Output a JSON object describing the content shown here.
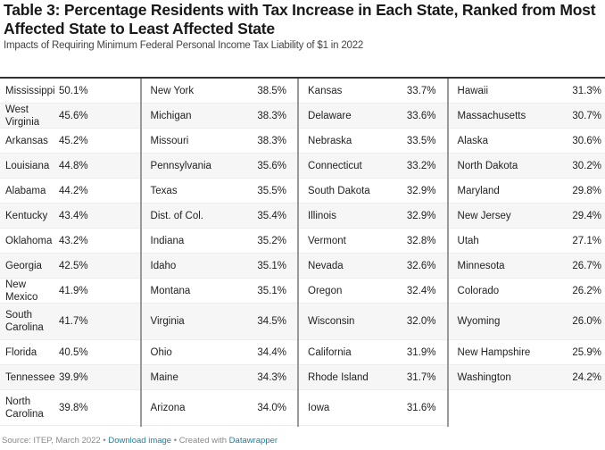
{
  "header": {
    "title": "Table 3: Percentage Residents with Tax Increase in Each State, Ranked from Most Affected State to Least Affected State",
    "subtitle": "Impacts of Requiring Minimum Federal Personal Income Tax Liability of $1 in 2022"
  },
  "table": {
    "columns": [
      [
        {
          "state": "Mississippi",
          "value": "50.1%"
        },
        {
          "state": "West Virginia",
          "value": "45.6%"
        },
        {
          "state": "Arkansas",
          "value": "45.2%"
        },
        {
          "state": "Louisiana",
          "value": "44.8%"
        },
        {
          "state": "Alabama",
          "value": "44.2%"
        },
        {
          "state": "Kentucky",
          "value": "43.4%"
        },
        {
          "state": "Oklahoma",
          "value": "43.2%"
        },
        {
          "state": "Georgia",
          "value": "42.5%"
        },
        {
          "state": "New Mexico",
          "value": "41.9%"
        },
        {
          "state": "South Carolina",
          "value": "41.7%"
        },
        {
          "state": "Florida",
          "value": "40.5%"
        },
        {
          "state": "Tennessee",
          "value": "39.9%"
        },
        {
          "state": "North Carolina",
          "value": "39.8%"
        }
      ],
      [
        {
          "state": "New York",
          "value": "38.5%"
        },
        {
          "state": "Michigan",
          "value": "38.3%"
        },
        {
          "state": "Missouri",
          "value": "38.3%"
        },
        {
          "state": "Pennsylvania",
          "value": "35.6%"
        },
        {
          "state": "Texas",
          "value": "35.5%"
        },
        {
          "state": "Dist. of Col.",
          "value": "35.4%"
        },
        {
          "state": "Indiana",
          "value": "35.2%"
        },
        {
          "state": "Idaho",
          "value": "35.1%"
        },
        {
          "state": "Montana",
          "value": "35.1%"
        },
        {
          "state": "Virginia",
          "value": "34.5%"
        },
        {
          "state": "Ohio",
          "value": "34.4%"
        },
        {
          "state": "Maine",
          "value": "34.3%"
        },
        {
          "state": "Arizona",
          "value": "34.0%"
        }
      ],
      [
        {
          "state": "Kansas",
          "value": "33.7%"
        },
        {
          "state": "Delaware",
          "value": "33.6%"
        },
        {
          "state": "Nebraska",
          "value": "33.5%"
        },
        {
          "state": "Connecticut",
          "value": "33.2%"
        },
        {
          "state": "South Dakota",
          "value": "32.9%"
        },
        {
          "state": "Illinois",
          "value": "32.9%"
        },
        {
          "state": "Vermont",
          "value": "32.8%"
        },
        {
          "state": "Nevada",
          "value": "32.6%"
        },
        {
          "state": "Oregon",
          "value": "32.4%"
        },
        {
          "state": "Wisconsin",
          "value": "32.0%"
        },
        {
          "state": "California",
          "value": "31.9%"
        },
        {
          "state": "Rhode Island",
          "value": "31.7%"
        },
        {
          "state": "Iowa",
          "value": "31.6%"
        }
      ],
      [
        {
          "state": "Hawaii",
          "value": "31.3%"
        },
        {
          "state": "Massachusetts",
          "value": "30.7%"
        },
        {
          "state": "Alaska",
          "value": "30.6%"
        },
        {
          "state": "North Dakota",
          "value": "30.2%"
        },
        {
          "state": "Maryland",
          "value": "29.8%"
        },
        {
          "state": "New Jersey",
          "value": "29.4%"
        },
        {
          "state": "Utah",
          "value": "27.1%"
        },
        {
          "state": "Minnesota",
          "value": "26.7%"
        },
        {
          "state": "Colorado",
          "value": "26.2%"
        },
        {
          "state": "Wyoming",
          "value": "26.0%"
        },
        {
          "state": "New Hampshire",
          "value": "25.9%"
        },
        {
          "state": "Washington",
          "value": "24.2%"
        }
      ]
    ]
  },
  "footer": {
    "source": "Source: ITEP, March 2022 • ",
    "download_link": "Download image",
    "separator": " • Created with ",
    "datawrapper_link": "Datawrapper"
  }
}
